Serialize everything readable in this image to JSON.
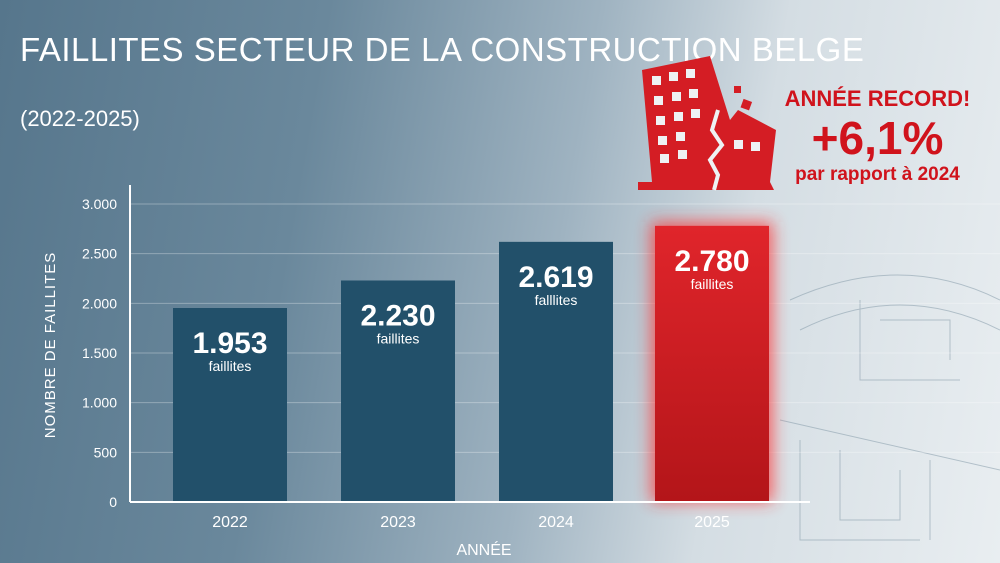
{
  "title": "FAILLITES SECTEUR DE LA CONSTRUCTION BELGE",
  "subtitle": "(2022-2025)",
  "callout": {
    "headline": "ANNÉE RECORD!",
    "change": "+6,1%",
    "comparison": "par rapport à 2024",
    "icon": "collapsing-building-icon"
  },
  "colors": {
    "bar": "#22506a",
    "highlight": "#d41d24",
    "accent_text": "#d0131c"
  },
  "chart_data": {
    "type": "bar",
    "title": "FAILLITES SECTEUR DE LA CONSTRUCTION BELGE",
    "xlabel": "ANNÉE",
    "ylabel": "NOMBRE DE FAILLITES",
    "categories": [
      "2022",
      "2023",
      "2024",
      "2025"
    ],
    "values": [
      1953,
      2230,
      2619,
      2780
    ],
    "data_labels": [
      "1.953",
      "2.230",
      "2.619",
      "2.780"
    ],
    "data_sublabels": [
      "faillites",
      "faillites",
      "falllites",
      "faillites"
    ],
    "highlight_category": "2025",
    "ylim": [
      0,
      3000
    ],
    "yticks": [
      0,
      500,
      1000,
      1500,
      2000,
      2500,
      3000
    ],
    "ytick_labels": [
      "0",
      "500",
      "1.000",
      "1.500",
      "2.000",
      "2.500",
      "3.000"
    ],
    "grid": true,
    "legend": "none"
  }
}
